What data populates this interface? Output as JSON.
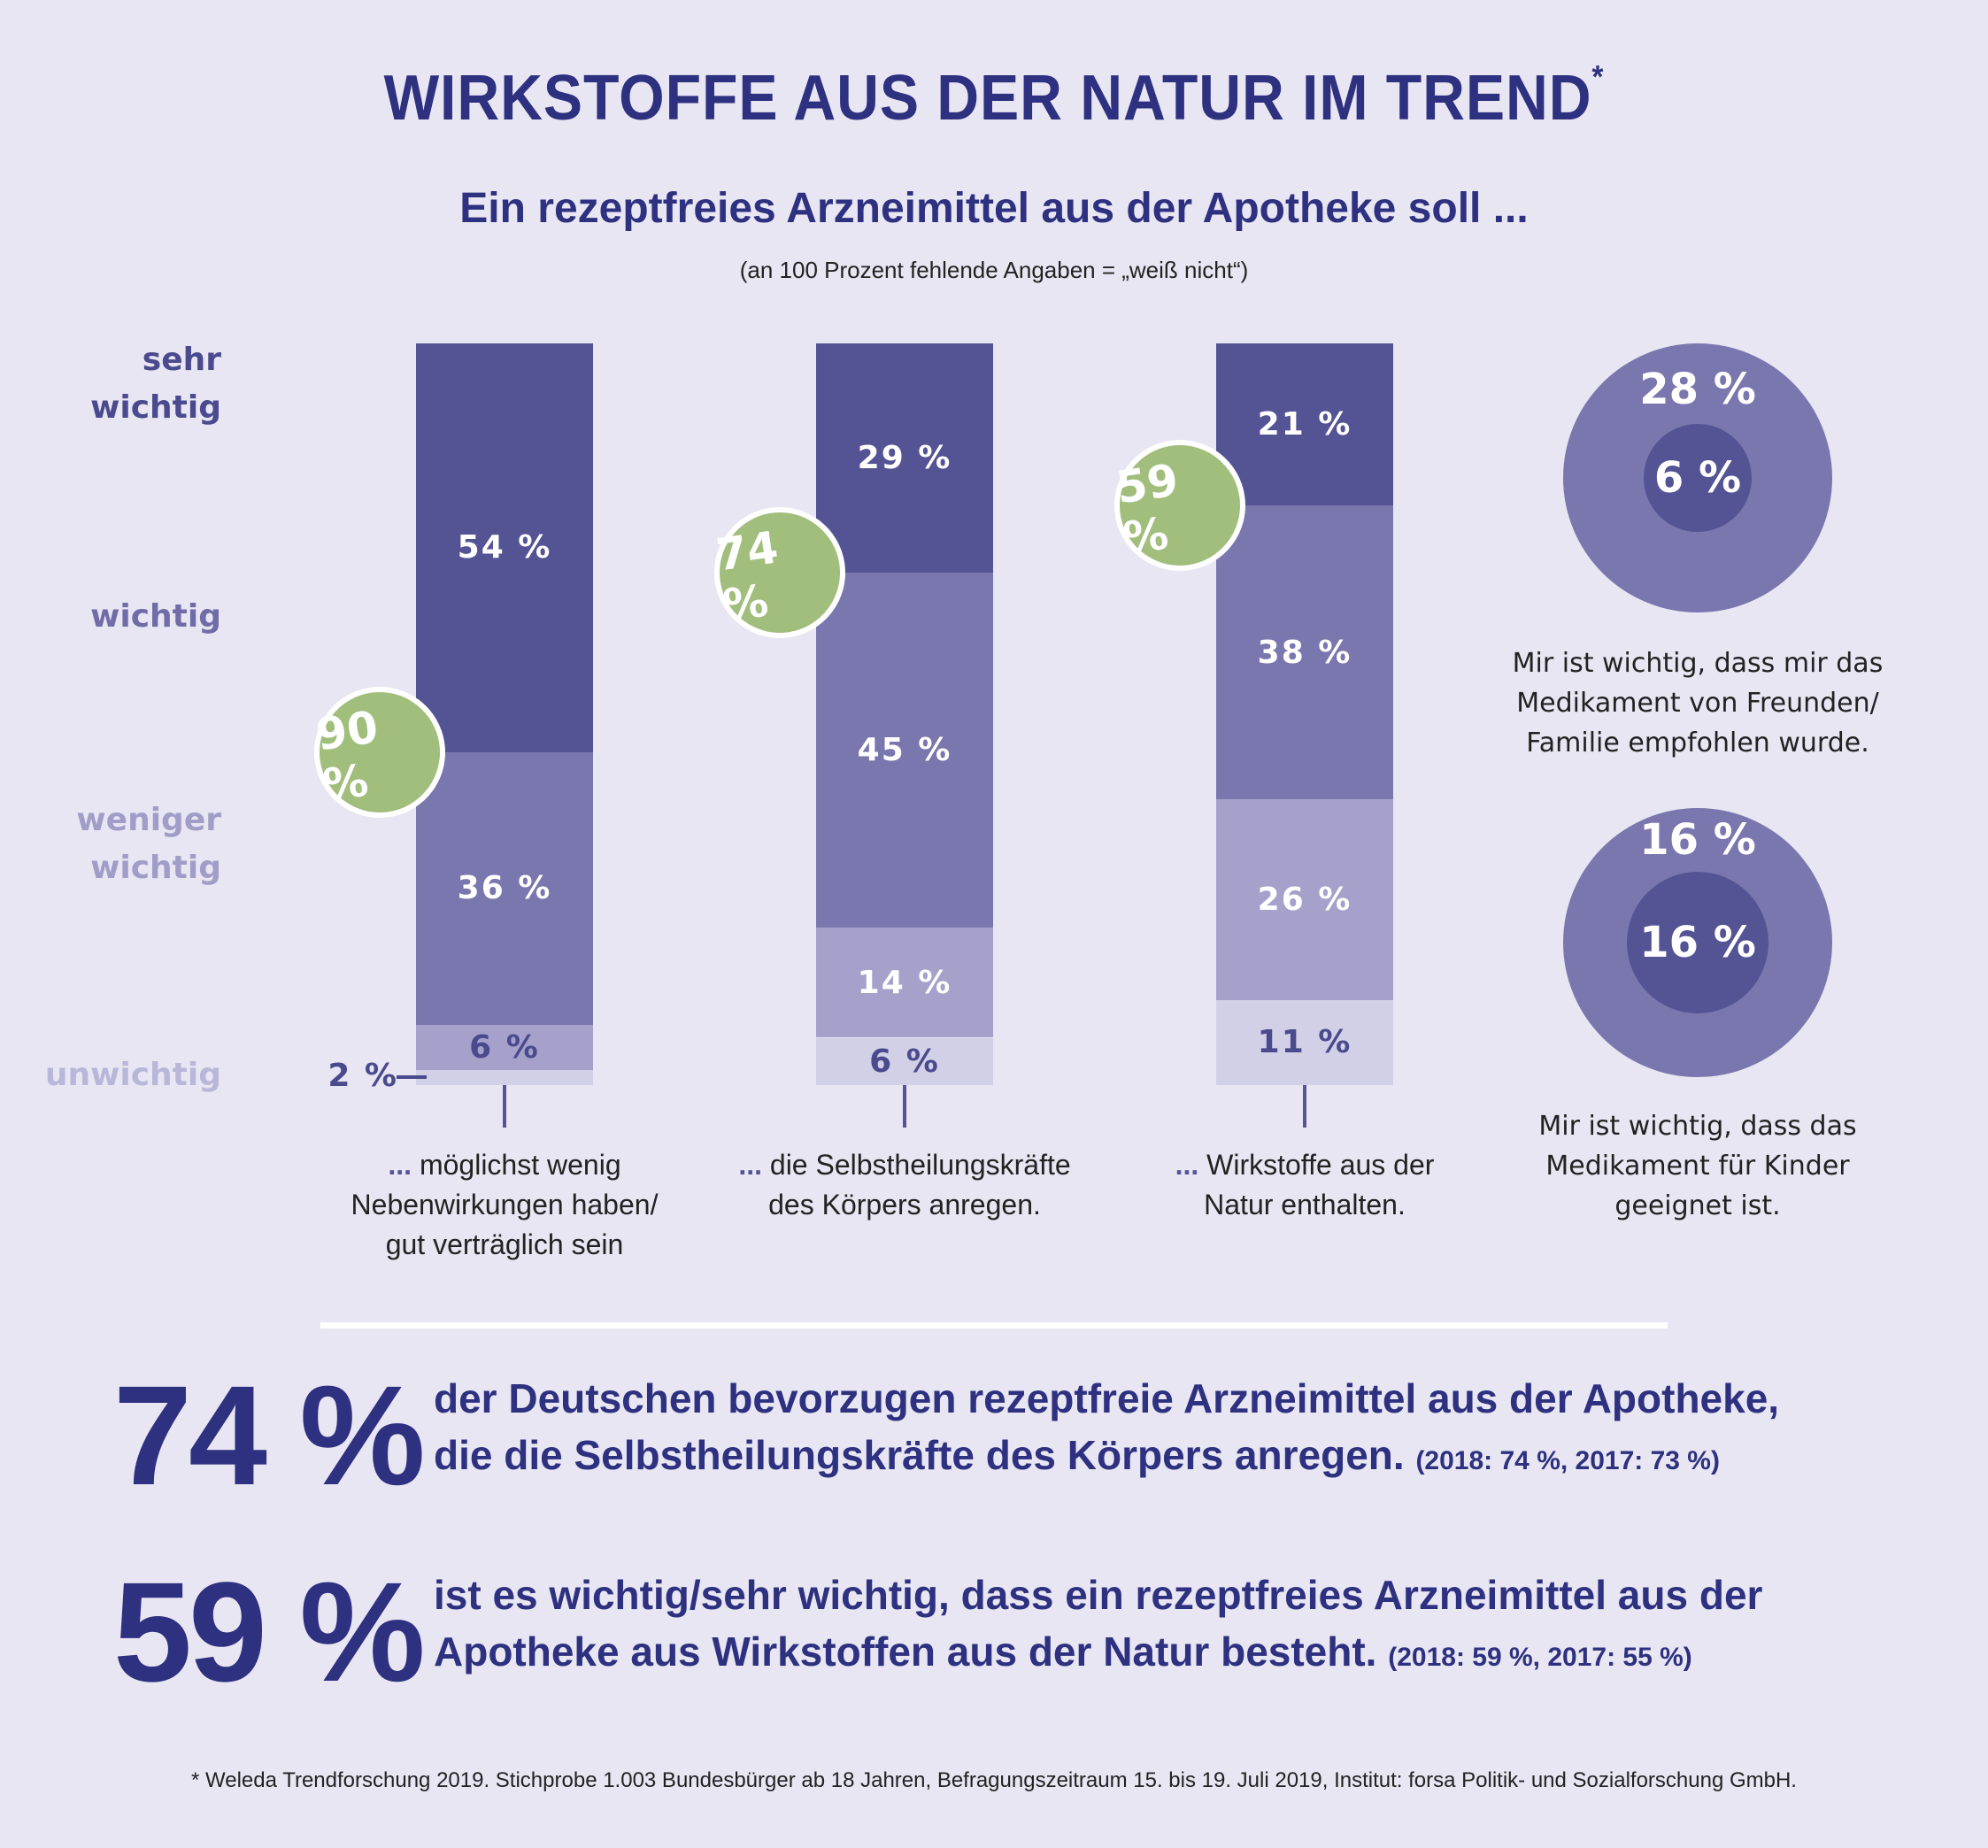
{
  "title": "WIRKSTOFFE AUS DER NATUR IM TREND",
  "title_marker": "*",
  "subtitle": "Ein rezeptfreies Arzneimittel aus der Apotheke soll ...",
  "note": "(an 100 Prozent fehlende Angaben = „weiß nicht“)",
  "colors": {
    "sehr_wichtig": "#545394",
    "wichtig": "#7a77ae",
    "weniger_wichtig": "#a6a1cb",
    "unwichtig": "#d1d0e6",
    "badge": "#a1be7d",
    "text_dark": "#2e3080",
    "background": "#e8e6f2"
  },
  "y_labels": [
    {
      "key": "sehr_wichtig",
      "text": "sehr\nwichtig",
      "color": "#4b4a8e"
    },
    {
      "key": "wichtig",
      "text": "wichtig",
      "color": "#6f6ca8"
    },
    {
      "key": "weniger_wichtig",
      "text": "weniger\nwichtig",
      "color": "#a09dc8"
    },
    {
      "key": "unwichtig",
      "text": "unwichtig",
      "color": "#b9b7d9"
    }
  ],
  "chart_data": [
    {
      "type": "bar",
      "stacked": true,
      "title": "Ein rezeptfreies Arzneimittel aus der Apotheke soll ...",
      "subtitle": "(an 100 Prozent fehlende Angaben = „weiß nicht“)",
      "ylim": [
        0,
        100
      ],
      "series_order": [
        "sehr wichtig",
        "wichtig",
        "weniger wichtig",
        "unwichtig"
      ],
      "categories": [
        {
          "dots": "...",
          "label": "möglichst wenig\nNebenwirkungen haben/\ngut verträglich sein"
        },
        {
          "dots": "...",
          "label": "die Selbstheilungskräfte\ndes Körpers anregen."
        },
        {
          "dots": "...",
          "label": "Wirkstoffe aus der\nNatur enthalten."
        }
      ],
      "series": [
        {
          "name": "sehr wichtig",
          "values": [
            54,
            29,
            21
          ],
          "labels": [
            "54 %",
            "29 %",
            "21 %"
          ]
        },
        {
          "name": "wichtig",
          "values": [
            36,
            45,
            38
          ],
          "labels": [
            "36 %",
            "45 %",
            "38 %"
          ]
        },
        {
          "name": "weniger wichtig",
          "values": [
            6,
            14,
            26
          ],
          "labels": [
            "6 %",
            "14 %",
            "26 %"
          ]
        },
        {
          "name": "unwichtig",
          "values": [
            2,
            6,
            11
          ],
          "labels": [
            "2 %",
            "6 %",
            "11 %"
          ]
        }
      ],
      "totals_wichtig_sehr_wichtig": [
        90,
        74,
        59
      ],
      "total_labels": [
        "90 %",
        "74 %",
        "59 %"
      ]
    },
    {
      "type": "pie",
      "variant": "nested-circles",
      "items": [
        {
          "outer_value": 28,
          "outer_label": "28 %",
          "inner_value": 6,
          "inner_label": "6 %",
          "caption": "Mir ist wichtig, dass mir das\nMedikament von Freunden/\nFamilie empfohlen wurde."
        },
        {
          "outer_value": 16,
          "outer_label": "16 %",
          "inner_value": 16,
          "inner_label": "16 %",
          "caption": "Mir ist wichtig, dass das\nMedikament für Kinder\ngeeignet ist."
        }
      ]
    }
  ],
  "statements": [
    {
      "big_number": "74 %",
      "line1": "der Deutschen bevorzugen rezeptfreie Arzneimittel aus der Apotheke,",
      "line2": "die die Selbstheilungskräfte des Körpers anregen.",
      "previous": "(2018: 74 %, 2017: 73 %)"
    },
    {
      "big_number": "59 %",
      "line1": "ist es wichtig/sehr wichtig, dass ein rezeptfreies Arzneimittel aus der",
      "line2": "Apotheke aus Wirkstoffen aus der Natur besteht.",
      "previous": "(2018: 59 %, 2017: 55 %)"
    }
  ],
  "footnote": "* Weleda Trendforschung 2019. Stichprobe 1.003 Bundesbürger ab 18 Jahren, Befragungszeitraum 15. bis 19. Juli 2019, Institut: forsa Politik- und Sozialforschung GmbH."
}
